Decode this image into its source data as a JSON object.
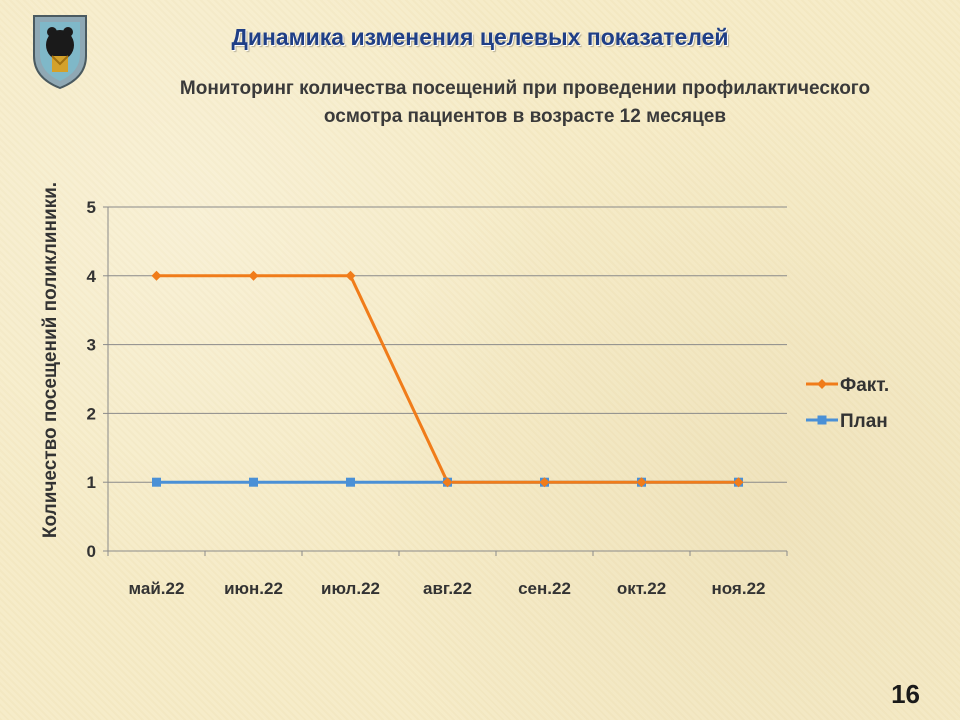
{
  "slide": {
    "title": "Динамика изменения целевых показателей",
    "number": "16"
  },
  "chart_data": {
    "type": "line",
    "title_lines": [
      "Мониторинг количества посещений при проведении профилактического",
      "осмотра пациентов в возрасте 12 месяцев"
    ],
    "xlabel": "",
    "ylabel": "Количество посещений поликлиники.",
    "categories": [
      "май.22",
      "июн.22",
      "июл.22",
      "авг.22",
      "сен.22",
      "окт.22",
      "ноя.22"
    ],
    "y_ticks": [
      0,
      1,
      2,
      3,
      4,
      5
    ],
    "ylim": [
      0,
      5
    ],
    "grid": true,
    "legend_position": "right",
    "series": [
      {
        "name": "Факт.",
        "values": [
          4,
          4,
          4,
          1,
          1,
          1,
          1
        ],
        "color": "#f07c1a",
        "marker": "diamond"
      },
      {
        "name": "План",
        "values": [
          1,
          1,
          1,
          1,
          1,
          1,
          1
        ],
        "color": "#4a90d6",
        "marker": "square"
      }
    ]
  }
}
